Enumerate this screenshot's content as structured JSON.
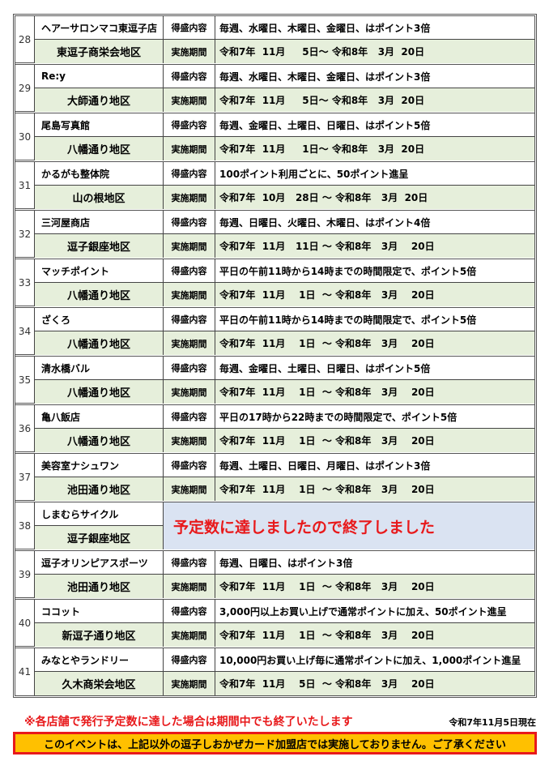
{
  "labels": {
    "content": "得盛内容",
    "period": "実施期間"
  },
  "entries": [
    {
      "no": "28",
      "name": "ヘアーサロンマコ東逗子店",
      "district": "東逗子商栄会地区",
      "content": "毎週、水曜日、木曜日、金曜日、はポイント3倍",
      "period": "令和7年  11月     5日～ 令和8年   3月  20日"
    },
    {
      "no": "29",
      "name": "Re:y",
      "district": "大師通り地区",
      "content": "毎週、水曜日、木曜日、金曜日、はポイント3倍",
      "period": "令和7年  11月     5日～ 令和8年   3月  20日"
    },
    {
      "no": "30",
      "name": "尾島写真館",
      "district": "八幡通り地区",
      "content": "毎週、金曜日、土曜日、日曜日、はポイント5倍",
      "period": "令和7年  11月     1日～ 令和8年   3月  20日"
    },
    {
      "no": "31",
      "name": "かるがも整体院",
      "district": "山の根地区",
      "content": "100ポイント利用ごとに、50ポイント進呈",
      "period": "令和7年  10月   28日 ～ 令和8年   3月  20日"
    },
    {
      "no": "32",
      "name": "三河屋商店",
      "district": "逗子銀座地区",
      "content": "毎週、日曜日、火曜日、木曜日、はポイント4倍",
      "period": "令和7年  11月   11日 ～ 令和8年   3月    20日"
    },
    {
      "no": "33",
      "name": "マッチポイント",
      "district": "八幡通り地区",
      "content": "平日の午前11時から14時までの時間限定で、ポイント5倍",
      "period": "令和7年  11月    1日  ～ 令和8年   3月    20日"
    },
    {
      "no": "34",
      "name": "ざくろ",
      "district": "八幡通り地区",
      "content": "平日の午前11時から14時までの時間限定で、ポイント5倍",
      "period": "令和7年  11月    1日  ～ 令和8年   3月    20日"
    },
    {
      "no": "35",
      "name": "清水橋バル",
      "district": "八幡通り地区",
      "content": "毎週、金曜日、土曜日、日曜日、はポイント5倍",
      "period": "令和7年  11月    1日  ～ 令和8年   3月    20日"
    },
    {
      "no": "36",
      "name": "亀八飯店",
      "district": "八幡通り地区",
      "content": "平日の17時から22時までの時間限定で、ポイント5倍",
      "period": "令和7年  11月    1日  ～ 令和8年   3月    20日"
    },
    {
      "no": "37",
      "name": "美容室ナシュワン",
      "district": "池田通り地区",
      "content": "毎週、土曜日、日曜日、月曜日、はポイント3倍",
      "period": "令和7年  11月    1日  ～ 令和8年   3月    20日"
    },
    {
      "no": "38",
      "name": "しまむらサイクル",
      "district": "逗子銀座地区",
      "ended": "予定数に達しましたので終了しました"
    },
    {
      "no": "39",
      "name": "逗子オリンピアスポーツ",
      "district": "池田通り地区",
      "content": "毎週、日曜日、はポイント3倍",
      "period": "令和7年  11月    1日  ～ 令和8年   3月    20日"
    },
    {
      "no": "40",
      "name": "ココット",
      "district": "新逗子通り地区",
      "content": "3,000円以上お買い上げで通常ポイントに加え、50ポイント進呈",
      "period": "令和7年  11月    1日  ～ 令和8年   3月    20日"
    },
    {
      "no": "41",
      "name": "みなとやランドリー",
      "district": "久木商栄会地区",
      "content": "10,000円お買い上げ毎に通常ポイントに加え、1,000ポイント進呈",
      "period": "令和7年  11月    5日  ～ 令和8年   3月    20日"
    }
  ],
  "footer": {
    "note": "※各店舗で発行予定数に達した場合は期間中でも終了いたします",
    "as_of": "令和7年11月5日現在",
    "banner": "このイベントは、上記以外の逗子しおかぜカード加盟店では実施しておりません。ご了承ください"
  },
  "colors": {
    "accent_red": "#e8191b",
    "row_green": "#e6efdb",
    "ended_blue": "#dae3f2",
    "banner_yellow": "#ffc000"
  }
}
